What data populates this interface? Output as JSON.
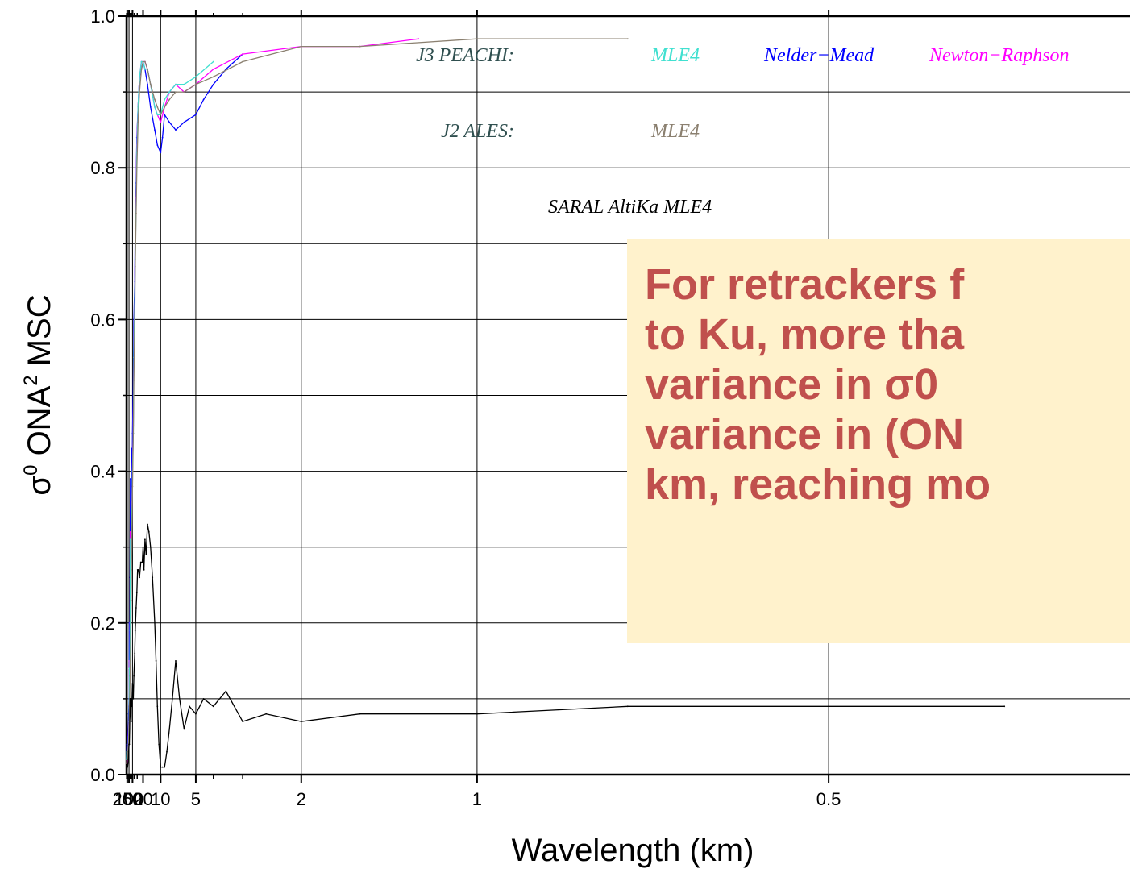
{
  "chart_data": {
    "type": "line",
    "title": "",
    "xlabel": "Wavelength (km)",
    "ylabel": "σ0 ONA2 MSC",
    "ylabel_parts": {
      "sigma": "σ",
      "sup0": "0",
      "ona": " ONA",
      "sup2": "2",
      "msc": " MSC"
    },
    "x_scale": "reciprocal (wavenumber-linear)",
    "xlim": [
      333,
      0.35
    ],
    "ylim": [
      0.0,
      1.0
    ],
    "grid": true,
    "x_ticks": [
      200,
      100,
      50,
      20,
      10,
      5,
      2,
      1,
      0.5
    ],
    "x_tick_labels": [
      "200",
      "100",
      "50",
      "20",
      "10",
      "5",
      "2",
      "1",
      "0.5"
    ],
    "y_ticks": [
      0.0,
      0.2,
      0.4,
      0.6,
      0.8,
      1.0
    ],
    "y_tick_labels": [
      "0.0",
      "0.2",
      "0.4",
      "0.6",
      "0.8",
      "1.0"
    ],
    "annotations": [
      {
        "text": "J3 PEACHI:",
        "color": "#2f4f4f"
      },
      {
        "text": "MLE4",
        "color": "#40e0d0"
      },
      {
        "text": "Nelder−Mead",
        "color": "#0000ff"
      },
      {
        "text": "Newton−Raphson",
        "color": "#ff00ff"
      },
      {
        "text": "J2 ALES:",
        "color": "#2f4f4f"
      },
      {
        "text": "MLE4",
        "color": "#8b8070"
      },
      {
        "text": "SARAL AltiKa MLE4",
        "color": "#000000"
      }
    ],
    "series": [
      {
        "name": "J3 PEACHI Nelder−Mead",
        "color": "#0000ff",
        "x": [
          333,
          250,
          200,
          167,
          143,
          125,
          111,
          100,
          91,
          83,
          77,
          71,
          67,
          62,
          59,
          56,
          50,
          45,
          42,
          38,
          36,
          33,
          31,
          28,
          25,
          22,
          20,
          18,
          16,
          14,
          12,
          11,
          10,
          9.5,
          9,
          8,
          7,
          6,
          5,
          4.5,
          4,
          3.5,
          3
        ],
        "y": [
          0.02,
          0.04,
          0.03,
          0.04,
          0.05,
          0.06,
          0.08,
          0.1,
          0.2,
          0.15,
          0.26,
          0.39,
          0.36,
          0.28,
          0.43,
          0.34,
          0.45,
          0.52,
          0.6,
          0.65,
          0.72,
          0.78,
          0.84,
          0.88,
          0.92,
          0.93,
          0.94,
          0.93,
          0.91,
          0.88,
          0.85,
          0.83,
          0.82,
          0.84,
          0.87,
          0.86,
          0.85,
          0.86,
          0.87,
          0.89,
          0.91,
          0.93,
          0.95
        ]
      },
      {
        "name": "J3 PEACHI Newton−Raphson",
        "color": "#ff00ff",
        "x": [
          333,
          250,
          200,
          167,
          143,
          125,
          111,
          100,
          91,
          83,
          77,
          71,
          67,
          62,
          59,
          56,
          50,
          45,
          42,
          38,
          36,
          33,
          31,
          28,
          25,
          22,
          20,
          18,
          16,
          14,
          12,
          11,
          10,
          9,
          8,
          7,
          6,
          5,
          4,
          3,
          2,
          1.5,
          1.2
        ],
        "y": [
          0.015,
          0.02,
          0.01,
          0.02,
          0.03,
          0.04,
          0.06,
          0.07,
          0.15,
          0.12,
          0.2,
          0.32,
          0.3,
          0.26,
          0.36,
          0.34,
          0.4,
          0.46,
          0.55,
          0.63,
          0.69,
          0.76,
          0.83,
          0.88,
          0.92,
          0.94,
          0.94,
          0.94,
          0.93,
          0.91,
          0.88,
          0.87,
          0.86,
          0.88,
          0.9,
          0.91,
          0.9,
          0.91,
          0.93,
          0.95,
          0.96,
          0.96,
          0.97
        ]
      },
      {
        "name": "J3 PEACHI MLE4",
        "color": "#40e0d0",
        "x": [
          333,
          250,
          200,
          167,
          143,
          125,
          111,
          100,
          91,
          83,
          77,
          71,
          67,
          62,
          59,
          56,
          50,
          45,
          42,
          38,
          36,
          33,
          31,
          28,
          25,
          22,
          20,
          18,
          16,
          14,
          12,
          11,
          10,
          9,
          8,
          7,
          6,
          5,
          4
        ],
        "y": [
          0.02,
          0.03,
          0.02,
          0.02,
          0.03,
          0.04,
          0.05,
          0.07,
          0.14,
          0.12,
          0.19,
          0.31,
          0.3,
          0.25,
          0.35,
          0.33,
          0.4,
          0.45,
          0.55,
          0.63,
          0.68,
          0.75,
          0.82,
          0.88,
          0.92,
          0.94,
          0.94,
          0.93,
          0.93,
          0.91,
          0.88,
          0.87,
          0.87,
          0.89,
          0.9,
          0.91,
          0.91,
          0.92,
          0.94
        ]
      },
      {
        "name": "J2 ALES MLE4",
        "color": "#8b8070",
        "x": [
          333,
          250,
          200,
          167,
          143,
          125,
          111,
          100,
          91,
          83,
          77,
          71,
          67,
          62,
          59,
          56,
          50,
          45,
          42,
          38,
          36,
          33,
          31,
          28,
          25,
          22,
          20,
          18,
          16,
          14,
          12,
          11,
          10,
          9,
          8,
          7,
          6,
          5,
          4,
          3,
          2,
          1.5,
          1,
          0.7
        ],
        "y": [
          0.015,
          0.02,
          0.02,
          0.02,
          0.03,
          0.04,
          0.05,
          0.06,
          0.09,
          0.1,
          0.13,
          0.15,
          0.18,
          0.23,
          0.27,
          0.3,
          0.38,
          0.45,
          0.52,
          0.6,
          0.67,
          0.74,
          0.8,
          0.86,
          0.9,
          0.93,
          0.94,
          0.94,
          0.93,
          0.91,
          0.89,
          0.88,
          0.87,
          0.88,
          0.89,
          0.9,
          0.9,
          0.91,
          0.92,
          0.94,
          0.96,
          0.96,
          0.97,
          0.97
        ]
      },
      {
        "name": "SARAL AltiKa MLE4",
        "color": "#000000",
        "x": [
          333,
          250,
          200,
          167,
          143,
          125,
          111,
          100,
          91,
          83,
          77,
          71,
          67,
          62,
          59,
          56,
          50,
          45,
          42,
          38,
          36,
          33,
          31,
          29,
          27,
          25,
          23,
          21,
          20,
          19,
          18,
          17,
          16,
          15,
          14,
          13,
          12,
          11.5,
          11,
          10.5,
          10,
          9.5,
          9,
          8.5,
          8,
          7.5,
          7,
          6.5,
          6,
          5.5,
          5,
          4.5,
          4,
          3.5,
          3,
          2.5,
          2,
          1.5,
          1,
          0.7,
          0.5,
          0.4
        ],
        "y": [
          0.003,
          0.005,
          0.01,
          0.01,
          0.015,
          0.02,
          0.03,
          0.04,
          0.04,
          0.06,
          0.1,
          0.1,
          0.08,
          0.07,
          0.1,
          0.09,
          0.12,
          0.1,
          0.13,
          0.16,
          0.19,
          0.22,
          0.24,
          0.27,
          0.27,
          0.26,
          0.28,
          0.28,
          0.3,
          0.27,
          0.31,
          0.29,
          0.33,
          0.32,
          0.3,
          0.26,
          0.2,
          0.15,
          0.09,
          0.04,
          0.01,
          0.01,
          0.01,
          0.03,
          0.06,
          0.1,
          0.15,
          0.1,
          0.06,
          0.09,
          0.08,
          0.1,
          0.09,
          0.11,
          0.07,
          0.08,
          0.07,
          0.08,
          0.08,
          0.09,
          0.09,
          0.09
        ]
      }
    ]
  },
  "callout": {
    "lines": [
      "For retrackers f",
      "to Ku, more tha",
      "variance in σ0",
      "variance in (ON",
      "km, reaching mo"
    ]
  }
}
